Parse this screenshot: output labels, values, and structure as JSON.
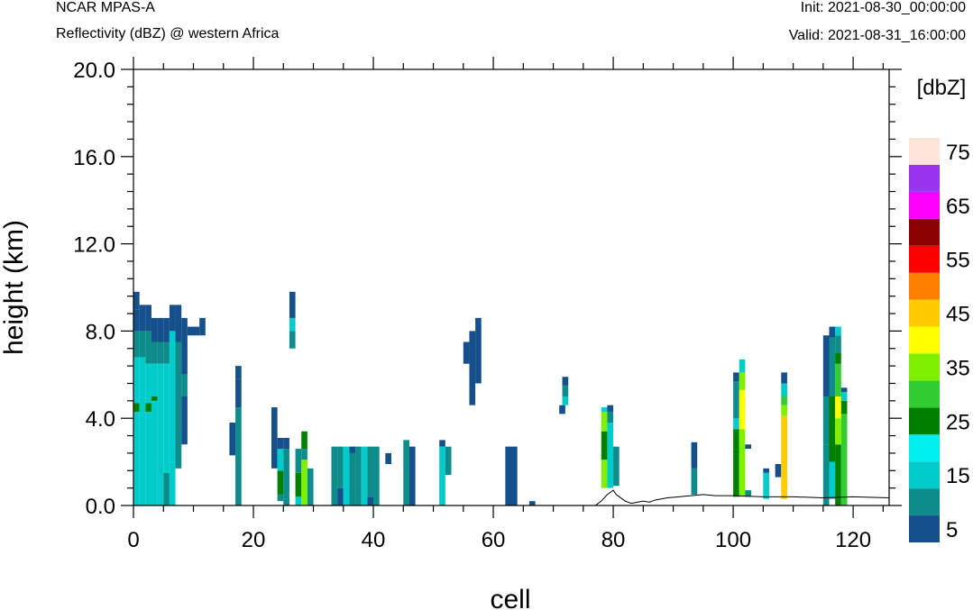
{
  "header": {
    "model": "NCAR MPAS-A",
    "field": "Reflectivity (dBZ) @ western Africa",
    "init": "Init: 2021-08-30_00:00:00",
    "valid": "Valid: 2021-08-31_16:00:00"
  },
  "chart_data": {
    "type": "heatmap",
    "xlabel": "cell",
    "ylabel": "height (km)",
    "xlim": [
      0,
      126
    ],
    "ylim": [
      0,
      20
    ],
    "xticks": [
      0,
      20,
      40,
      60,
      80,
      100,
      120
    ],
    "yticks": [
      0,
      4,
      8,
      12,
      16,
      20
    ],
    "ytick_labels": [
      "0.0",
      "4.0",
      "8.0",
      "12.0",
      "16.0",
      "20.0"
    ],
    "grid": false,
    "colorbar": {
      "title": "[dbZ]",
      "placement": "right",
      "levels": [
        5,
        10,
        15,
        20,
        25,
        30,
        35,
        40,
        45,
        50,
        55,
        60,
        65,
        70,
        75
      ],
      "labels": [
        "5",
        "15",
        "25",
        "35",
        "45",
        "55",
        "65",
        "75"
      ],
      "colors": [
        "#15508d",
        "#0e8b8b",
        "#00cccc",
        "#00f0f0",
        "#008000",
        "#33cc33",
        "#7ff000",
        "#ffff00",
        "#ffcc00",
        "#ff8000",
        "#ff0000",
        "#8b0000",
        "#ff00ff",
        "#9933ee",
        "#ffe4dc"
      ]
    },
    "columns": [
      {
        "x": 0.5,
        "w": 1,
        "cells": [
          [
            0,
            4.3,
            15
          ],
          [
            4.3,
            4.7,
            25
          ],
          [
            4.7,
            6.8,
            15
          ],
          [
            6.8,
            8.0,
            10
          ],
          [
            8.0,
            9.0,
            5
          ],
          [
            9.0,
            9.8,
            5
          ]
        ]
      },
      {
        "x": 1.5,
        "w": 1,
        "cells": [
          [
            0,
            6.8,
            15
          ],
          [
            6.8,
            8.0,
            10
          ],
          [
            8.0,
            9.2,
            5
          ]
        ]
      },
      {
        "x": 2.5,
        "w": 1,
        "cells": [
          [
            0,
            4.3,
            15
          ],
          [
            4.3,
            4.7,
            25
          ],
          [
            4.7,
            6.5,
            15
          ],
          [
            6.5,
            8.0,
            10
          ],
          [
            8.0,
            9.2,
            5
          ]
        ]
      },
      {
        "x": 3.5,
        "w": 1,
        "cells": [
          [
            0,
            4.8,
            15
          ],
          [
            4.8,
            5.0,
            25
          ],
          [
            5.0,
            6.5,
            15
          ],
          [
            6.5,
            7.5,
            10
          ],
          [
            7.5,
            8.6,
            5
          ]
        ]
      },
      {
        "x": 4.5,
        "w": 1,
        "cells": [
          [
            0,
            6.5,
            15
          ],
          [
            6.5,
            7.5,
            10
          ],
          [
            7.5,
            8.6,
            5
          ]
        ]
      },
      {
        "x": 5.5,
        "w": 1,
        "cells": [
          [
            0,
            1.5,
            10
          ],
          [
            1.5,
            6.5,
            15
          ],
          [
            6.5,
            7.5,
            10
          ],
          [
            7.5,
            8.6,
            5
          ]
        ]
      },
      {
        "x": 6.5,
        "w": 1,
        "cells": [
          [
            0,
            2.0,
            15
          ],
          [
            2.0,
            8.0,
            15
          ],
          [
            8.0,
            9.2,
            5
          ]
        ]
      },
      {
        "x": 7.5,
        "w": 1,
        "cells": [
          [
            1.7,
            3.8,
            10
          ],
          [
            3.8,
            7.5,
            10
          ],
          [
            7.5,
            9.2,
            5
          ]
        ]
      },
      {
        "x": 8.5,
        "w": 1,
        "cells": [
          [
            2.8,
            5.0,
            5
          ],
          [
            5.0,
            6.0,
            10
          ],
          [
            6.0,
            8.6,
            5
          ]
        ]
      },
      {
        "x": 9.5,
        "w": 1,
        "cells": [
          [
            7.8,
            8.2,
            5
          ]
        ]
      },
      {
        "x": 10.5,
        "w": 1,
        "cells": [
          [
            7.8,
            8.2,
            5
          ]
        ]
      },
      {
        "x": 11.5,
        "w": 1,
        "cells": [
          [
            7.8,
            8.6,
            5
          ]
        ]
      },
      {
        "x": 16.5,
        "w": 1,
        "cells": [
          [
            2.3,
            3.8,
            5
          ]
        ]
      },
      {
        "x": 17.5,
        "w": 1,
        "cells": [
          [
            0,
            4.5,
            10
          ],
          [
            4.5,
            5.8,
            5
          ],
          [
            5.8,
            6.4,
            5
          ]
        ]
      },
      {
        "x": 23.5,
        "w": 1,
        "cells": [
          [
            1.7,
            4.5,
            5
          ]
        ]
      },
      {
        "x": 24.5,
        "w": 1,
        "cells": [
          [
            0.2,
            0.5,
            10
          ],
          [
            0.5,
            1.6,
            25
          ],
          [
            1.6,
            2.6,
            15
          ],
          [
            2.6,
            3.1,
            5
          ]
        ]
      },
      {
        "x": 25.5,
        "w": 1,
        "cells": [
          [
            0,
            0.3,
            10
          ],
          [
            0.3,
            2.6,
            10
          ],
          [
            2.6,
            3.1,
            5
          ]
        ]
      },
      {
        "x": 26.5,
        "w": 1,
        "cells": [
          [
            7.2,
            8.0,
            10
          ],
          [
            8.0,
            8.6,
            15
          ],
          [
            8.6,
            9.8,
            5
          ]
        ]
      },
      {
        "x": 27.5,
        "w": 1,
        "cells": [
          [
            0,
            0.4,
            15
          ],
          [
            0.4,
            1.5,
            25
          ],
          [
            1.5,
            2.6,
            10
          ]
        ]
      },
      {
        "x": 28.5,
        "w": 1,
        "cells": [
          [
            0,
            2.1,
            35
          ],
          [
            2.1,
            2.6,
            10
          ],
          [
            2.6,
            3.4,
            25
          ]
        ]
      },
      {
        "x": 29.5,
        "w": 1,
        "cells": [
          [
            0,
            1.7,
            10
          ]
        ]
      },
      {
        "x": 33.5,
        "w": 1,
        "cells": [
          [
            0,
            2.7,
            10
          ]
        ]
      },
      {
        "x": 34.5,
        "w": 1,
        "cells": [
          [
            0,
            0.8,
            5
          ],
          [
            0.8,
            2.7,
            10
          ]
        ]
      },
      {
        "x": 35.5,
        "w": 1,
        "cells": [
          [
            0,
            2.7,
            15
          ]
        ]
      },
      {
        "x": 36.5,
        "w": 1,
        "cells": [
          [
            0,
            2.4,
            10
          ],
          [
            2.4,
            2.7,
            5
          ]
        ]
      },
      {
        "x": 37.5,
        "w": 1,
        "cells": [
          [
            0,
            2.7,
            10
          ]
        ]
      },
      {
        "x": 38.5,
        "w": 1,
        "cells": [
          [
            0,
            2.7,
            15
          ]
        ]
      },
      {
        "x": 39.5,
        "w": 1,
        "cells": [
          [
            0,
            0.4,
            5
          ],
          [
            0.4,
            2.7,
            10
          ]
        ]
      },
      {
        "x": 40.5,
        "w": 1,
        "cells": [
          [
            0,
            2.7,
            10
          ]
        ]
      },
      {
        "x": 42.5,
        "w": 1,
        "cells": [
          [
            1.9,
            2.4,
            5
          ]
        ]
      },
      {
        "x": 45.5,
        "w": 1,
        "cells": [
          [
            0,
            3.0,
            10
          ]
        ]
      },
      {
        "x": 46.5,
        "w": 1,
        "cells": [
          [
            0,
            2.7,
            5
          ]
        ]
      },
      {
        "x": 51.5,
        "w": 1,
        "cells": [
          [
            0,
            2.7,
            15
          ],
          [
            2.7,
            3.0,
            5
          ]
        ]
      },
      {
        "x": 52.5,
        "w": 1,
        "cells": [
          [
            1.4,
            2.7,
            10
          ]
        ]
      },
      {
        "x": 55.5,
        "w": 1,
        "cells": [
          [
            6.5,
            7.5,
            5
          ]
        ]
      },
      {
        "x": 56.5,
        "w": 1,
        "cells": [
          [
            4.6,
            8.0,
            5
          ]
        ]
      },
      {
        "x": 57.5,
        "w": 1,
        "cells": [
          [
            5.6,
            8.6,
            5
          ]
        ]
      },
      {
        "x": 62.5,
        "w": 1,
        "cells": [
          [
            0,
            2.7,
            5
          ]
        ]
      },
      {
        "x": 63.5,
        "w": 1,
        "cells": [
          [
            0,
            2.7,
            5
          ]
        ]
      },
      {
        "x": 66.5,
        "w": 1,
        "cells": [
          [
            0,
            0.2,
            5
          ]
        ]
      },
      {
        "x": 71.5,
        "w": 1,
        "cells": [
          [
            4.2,
            4.6,
            5
          ]
        ]
      },
      {
        "x": 72.0,
        "w": 1,
        "cells": [
          [
            4.6,
            5.0,
            15
          ],
          [
            5.0,
            5.5,
            10
          ],
          [
            5.5,
            5.9,
            5
          ]
        ]
      },
      {
        "x": 78.5,
        "w": 1,
        "cells": [
          [
            0.8,
            2.1,
            35
          ],
          [
            2.1,
            3.4,
            25
          ],
          [
            3.4,
            4.3,
            35
          ],
          [
            4.3,
            4.5,
            15
          ]
        ]
      },
      {
        "x": 79.5,
        "w": 1,
        "cells": [
          [
            0.8,
            3.8,
            15
          ],
          [
            3.8,
            4.3,
            10
          ],
          [
            4.3,
            4.6,
            5
          ]
        ]
      },
      {
        "x": 80.5,
        "w": 1,
        "cells": [
          [
            0.9,
            2.7,
            10
          ]
        ]
      },
      {
        "x": 93.5,
        "w": 1,
        "cells": [
          [
            0.5,
            1.7,
            10
          ],
          [
            1.7,
            2.9,
            5
          ]
        ]
      },
      {
        "x": 100.5,
        "w": 1,
        "cells": [
          [
            0.4,
            2.6,
            25
          ],
          [
            2.6,
            3.5,
            25
          ],
          [
            3.5,
            4.0,
            15
          ],
          [
            4.0,
            5.7,
            10
          ],
          [
            5.7,
            6.1,
            5
          ]
        ]
      },
      {
        "x": 101.5,
        "w": 1,
        "cells": [
          [
            0.4,
            3.5,
            35
          ],
          [
            3.5,
            5.3,
            40
          ],
          [
            5.3,
            6.1,
            35
          ],
          [
            6.1,
            6.7,
            15
          ]
        ]
      },
      {
        "x": 102.5,
        "w": 1,
        "cells": [
          [
            0.4,
            0.7,
            10
          ],
          [
            2.6,
            2.8,
            5
          ]
        ]
      },
      {
        "x": 105.5,
        "w": 1,
        "cells": [
          [
            0.3,
            1.5,
            15
          ],
          [
            1.5,
            1.7,
            5
          ]
        ]
      },
      {
        "x": 107.5,
        "w": 1,
        "cells": [
          [
            1.3,
            1.9,
            5
          ]
        ]
      },
      {
        "x": 108.5,
        "w": 1,
        "cells": [
          [
            0.3,
            4.1,
            45
          ],
          [
            4.1,
            4.6,
            35
          ],
          [
            4.6,
            5.0,
            30
          ],
          [
            5.0,
            5.6,
            15
          ],
          [
            5.6,
            6.1,
            5
          ]
        ]
      },
      {
        "x": 115.5,
        "w": 1,
        "cells": [
          [
            0,
            2.8,
            10
          ],
          [
            2.8,
            5.0,
            10
          ],
          [
            5.0,
            7.8,
            5
          ]
        ]
      },
      {
        "x": 116.5,
        "w": 1,
        "cells": [
          [
            0.3,
            2.0,
            15
          ],
          [
            2.0,
            5.0,
            25
          ],
          [
            5.0,
            7.7,
            10
          ],
          [
            7.7,
            8.2,
            5
          ]
        ]
      },
      {
        "x": 117.5,
        "w": 1,
        "cells": [
          [
            0,
            2.8,
            25
          ],
          [
            2.8,
            4.0,
            35
          ],
          [
            4.0,
            5.0,
            40
          ],
          [
            5.0,
            6.5,
            30
          ],
          [
            6.5,
            7.0,
            25
          ],
          [
            7.0,
            7.8,
            10
          ],
          [
            7.8,
            8.2,
            15
          ]
        ]
      },
      {
        "x": 118.5,
        "w": 1,
        "cells": [
          [
            0,
            4.2,
            30
          ],
          [
            4.2,
            4.8,
            25
          ],
          [
            4.8,
            5.2,
            15
          ],
          [
            5.2,
            5.4,
            5
          ]
        ]
      }
    ],
    "terrain": [
      [
        0,
        0
      ],
      [
        77,
        0
      ],
      [
        78,
        0.2
      ],
      [
        79,
        0.5
      ],
      [
        80,
        0.7
      ],
      [
        80.5,
        0.5
      ],
      [
        81,
        0.4
      ],
      [
        82,
        0.2
      ],
      [
        83,
        0.1
      ],
      [
        84,
        0.15
      ],
      [
        85,
        0.2
      ],
      [
        86,
        0.15
      ],
      [
        87,
        0.25
      ],
      [
        88,
        0.3
      ],
      [
        89,
        0.35
      ],
      [
        91,
        0.4
      ],
      [
        93,
        0.45
      ],
      [
        95,
        0.5
      ],
      [
        97,
        0.45
      ],
      [
        100,
        0.45
      ],
      [
        105,
        0.4
      ],
      [
        110,
        0.4
      ],
      [
        115,
        0.35
      ],
      [
        120,
        0.4
      ],
      [
        126,
        0.35
      ]
    ]
  }
}
